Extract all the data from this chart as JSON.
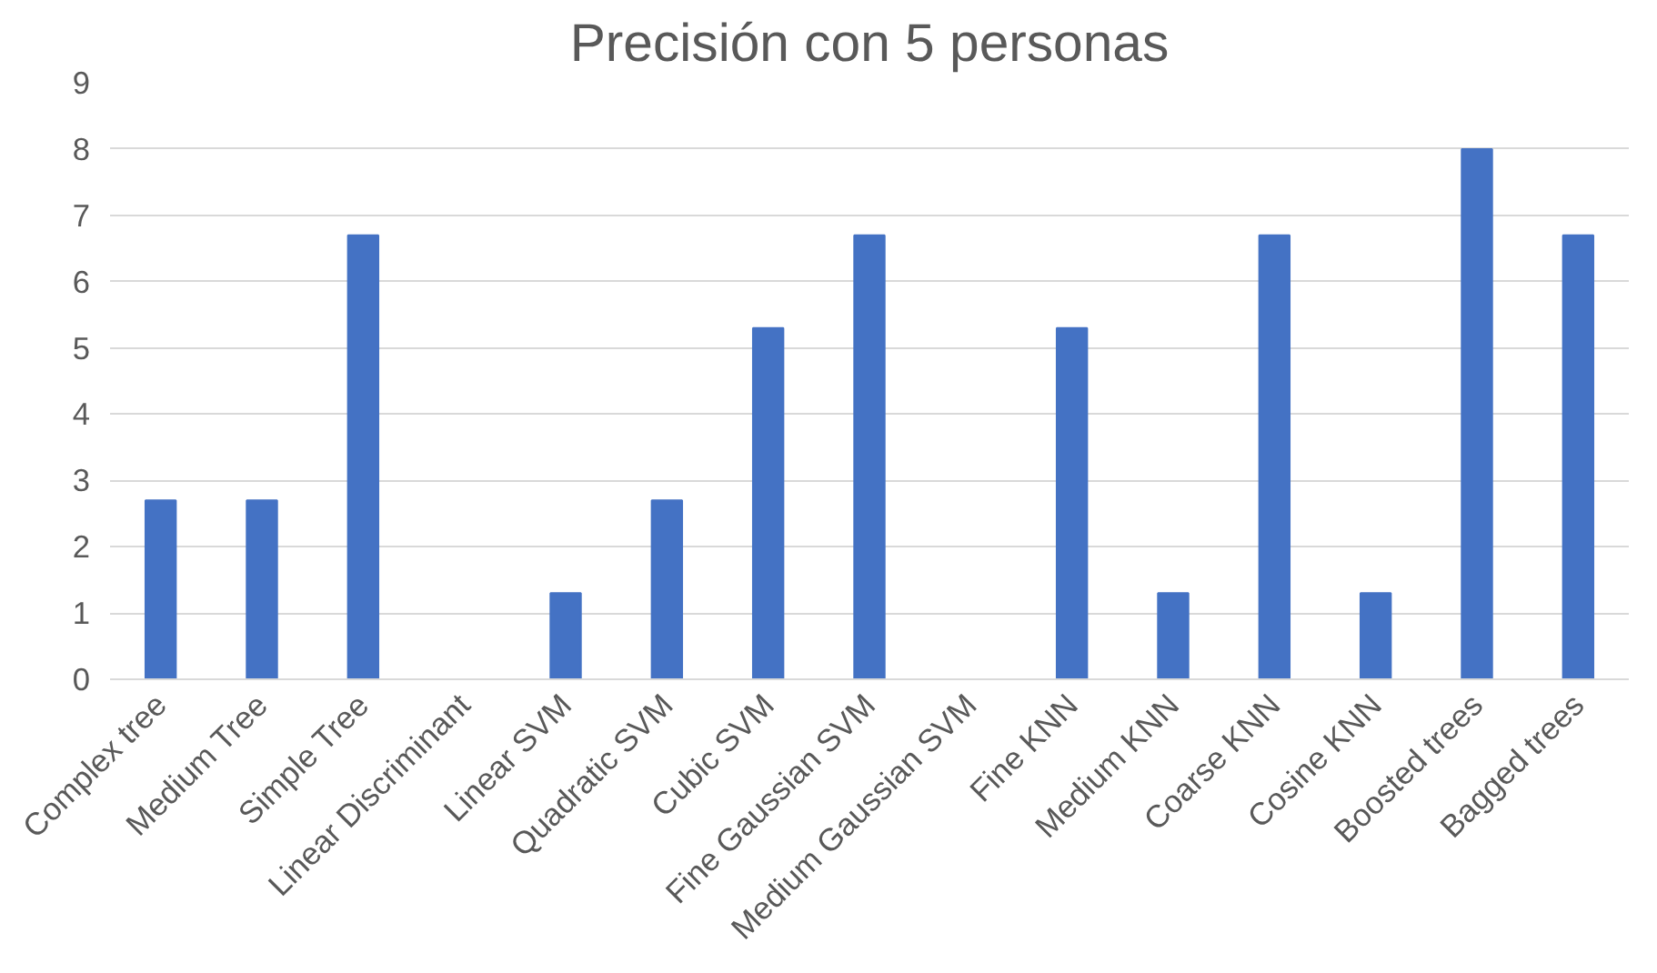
{
  "chart_data": {
    "type": "bar",
    "title": "Precisión con 5 personas",
    "categories": [
      "Complex tree",
      "Medium Tree",
      "Simple Tree",
      "Linear Discriminant",
      "Linear SVM",
      "Quadratic SVM",
      "Cubic SVM",
      "Fine Gaussian SVM",
      "Medium Gaussian SVM",
      "Fine KNN",
      "Medium KNN",
      "Coarse KNN",
      "Cosine KNN",
      "Boosted trees",
      "Bagged trees"
    ],
    "values": [
      2.7,
      2.7,
      6.7,
      0,
      1.3,
      2.7,
      5.3,
      6.7,
      0,
      5.3,
      1.3,
      6.7,
      1.3,
      8,
      6.7
    ],
    "color": "#4472c4",
    "ylim": [
      0,
      9
    ],
    "yticks": [
      0,
      1,
      2,
      3,
      4,
      5,
      6,
      7,
      8,
      9
    ],
    "grid": "y"
  }
}
